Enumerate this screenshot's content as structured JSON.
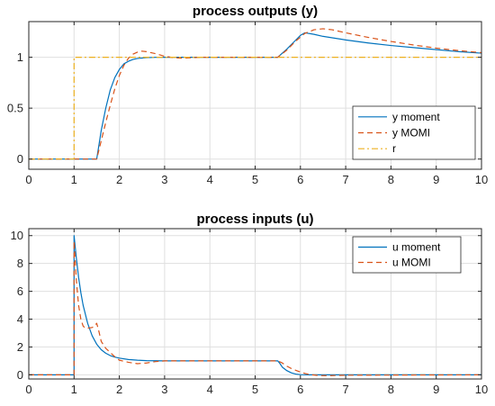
{
  "colors": {
    "moment": "#0072BD",
    "momi": "#D95319",
    "r": "#EDB120",
    "grid": "#dfdfdf",
    "axis": "#262626"
  },
  "chart_data": [
    {
      "type": "line",
      "title": "process outputs (y)",
      "xlim": [
        0,
        10
      ],
      "ylim": [
        -0.1,
        1.35
      ],
      "xticks": [
        0,
        1,
        2,
        3,
        4,
        5,
        6,
        7,
        8,
        9,
        10
      ],
      "yticks": [
        0,
        0.5,
        1
      ],
      "ytick_labels": [
        "0",
        "0.5",
        "1"
      ],
      "grid": true,
      "legend_position": "bottom-right",
      "series": [
        {
          "name": "y moment",
          "color": "#0072BD",
          "dash": "solid",
          "x": [
            0,
            1.5,
            1.6,
            1.7,
            1.8,
            1.9,
            2.0,
            2.1,
            2.2,
            2.3,
            2.4,
            2.6,
            2.8,
            3.0,
            3.5,
            4.0,
            5.0,
            5.5,
            5.7,
            5.9,
            6.0,
            6.1,
            6.3,
            6.5,
            7.0,
            7.5,
            8.0,
            8.5,
            9.0,
            9.5,
            10.0
          ],
          "y": [
            0,
            0,
            0.28,
            0.5,
            0.68,
            0.8,
            0.88,
            0.935,
            0.96,
            0.978,
            0.988,
            0.996,
            0.999,
            1.0,
            1.0,
            1.0,
            1.0,
            1.0,
            1.08,
            1.17,
            1.215,
            1.24,
            1.225,
            1.205,
            1.17,
            1.14,
            1.115,
            1.095,
            1.075,
            1.055,
            1.04
          ]
        },
        {
          "name": "y MOMI",
          "color": "#D95319",
          "dash": "dashed",
          "x": [
            0,
            1.5,
            1.6,
            1.7,
            1.8,
            1.9,
            2.0,
            2.1,
            2.2,
            2.3,
            2.4,
            2.5,
            2.6,
            2.8,
            3.0,
            3.2,
            3.4,
            3.6,
            3.8,
            4.0,
            5.0,
            5.5,
            5.7,
            5.9,
            6.1,
            6.3,
            6.5,
            6.7,
            7.0,
            7.5,
            8.0,
            8.5,
            9.0,
            9.5,
            10.0
          ],
          "y": [
            0,
            0,
            0.18,
            0.36,
            0.53,
            0.69,
            0.82,
            0.92,
            0.99,
            1.03,
            1.05,
            1.06,
            1.055,
            1.035,
            1.01,
            0.995,
            0.99,
            0.995,
            1.0,
            1.0,
            1.0,
            1.0,
            1.07,
            1.16,
            1.235,
            1.27,
            1.28,
            1.27,
            1.24,
            1.195,
            1.155,
            1.12,
            1.09,
            1.065,
            1.045
          ]
        },
        {
          "name": "r",
          "color": "#EDB120",
          "dash": "dashdot",
          "x": [
            0,
            1,
            1,
            10
          ],
          "y": [
            0,
            0,
            1,
            1
          ]
        }
      ]
    },
    {
      "type": "line",
      "title": "process inputs (u)",
      "xlim": [
        0,
        10
      ],
      "ylim": [
        -0.3,
        10.5
      ],
      "xticks": [
        0,
        1,
        2,
        3,
        4,
        5,
        6,
        7,
        8,
        9,
        10
      ],
      "yticks": [
        0,
        2,
        4,
        6,
        8,
        10
      ],
      "ytick_labels": [
        "0",
        "2",
        "4",
        "6",
        "8",
        "10"
      ],
      "grid": true,
      "legend_position": "top-right",
      "series": [
        {
          "name": "u moment",
          "color": "#0072BD",
          "dash": "solid",
          "x": [
            0,
            1.0,
            1.0,
            1.05,
            1.1,
            1.15,
            1.2,
            1.3,
            1.4,
            1.5,
            1.6,
            1.7,
            1.8,
            1.9,
            2.0,
            2.2,
            2.4,
            2.6,
            3.0,
            4.0,
            5.0,
            5.5,
            5.55,
            5.6,
            5.7,
            5.8,
            5.9,
            6.0,
            6.2,
            6.5,
            7.0,
            10.0
          ],
          "y": [
            0,
            0,
            10.0,
            8.4,
            7.0,
            5.9,
            5.0,
            3.7,
            2.8,
            2.2,
            1.8,
            1.55,
            1.38,
            1.27,
            1.2,
            1.1,
            1.05,
            1.02,
            1.0,
            1.0,
            1.0,
            1.0,
            0.8,
            0.55,
            0.3,
            0.14,
            0.05,
            0.01,
            0,
            0,
            0,
            0
          ]
        },
        {
          "name": "u MOMI",
          "color": "#D95319",
          "dash": "dashed",
          "x": [
            0,
            1.0,
            1.0,
            1.05,
            1.1,
            1.15,
            1.2,
            1.25,
            1.3,
            1.4,
            1.45,
            1.5,
            1.55,
            1.6,
            1.7,
            1.8,
            1.9,
            2.0,
            2.2,
            2.4,
            2.6,
            2.8,
            3.0,
            4.0,
            5.0,
            5.5,
            5.6,
            5.7,
            5.8,
            5.9,
            6.0,
            6.1,
            6.2,
            6.4,
            6.6,
            7.0,
            10.0
          ],
          "y": [
            0,
            0,
            9.6,
            6.8,
            5.0,
            4.0,
            3.5,
            3.35,
            3.35,
            3.4,
            3.5,
            3.7,
            3.1,
            2.4,
            1.9,
            1.6,
            1.3,
            1.05,
            0.9,
            0.8,
            0.85,
            0.95,
            1.0,
            1.0,
            1.0,
            1.0,
            0.85,
            0.62,
            0.45,
            0.32,
            0.2,
            0.1,
            0.02,
            -0.05,
            -0.06,
            -0.03,
            0
          ]
        }
      ]
    }
  ]
}
